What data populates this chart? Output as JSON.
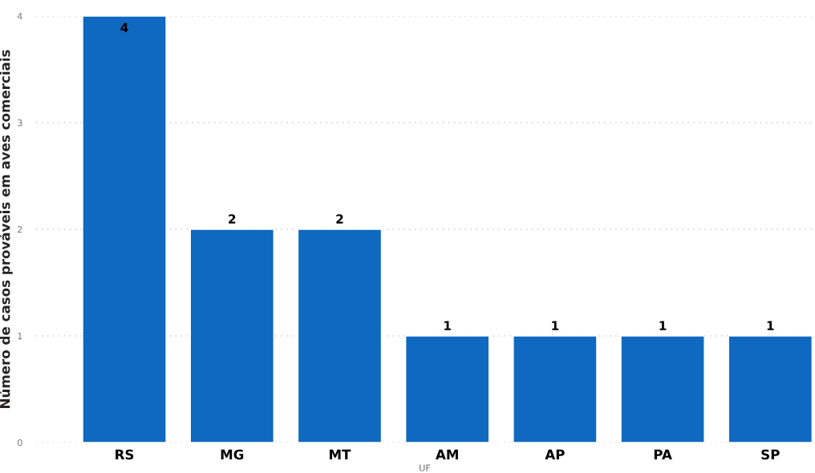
{
  "chart_data": {
    "type": "bar",
    "categories": [
      "RS",
      "MG",
      "MT",
      "AM",
      "AP",
      "PA",
      "SP"
    ],
    "values": [
      4,
      2,
      2,
      1,
      1,
      1,
      1
    ],
    "color": "#0f69c0",
    "xlabel": "UF",
    "ylabel": "Número de casos prováveis em aves comerciais",
    "ylim": [
      0,
      4
    ],
    "yticks": [
      0,
      1,
      2,
      3,
      4
    ],
    "grid": "y",
    "data_labels": true
  }
}
